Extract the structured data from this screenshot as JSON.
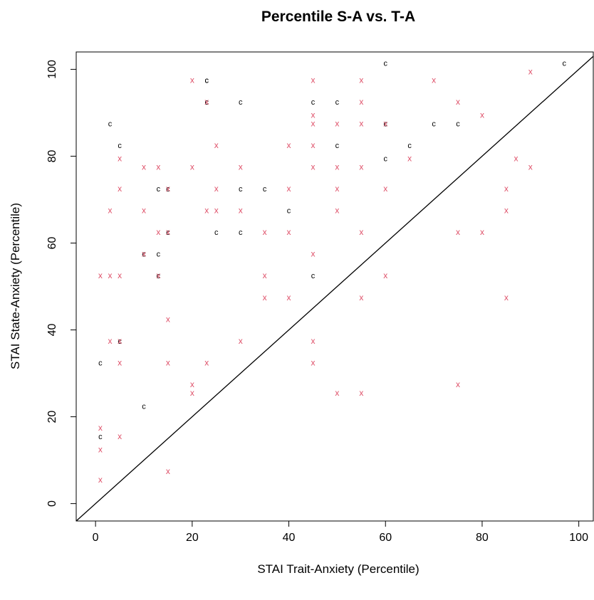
{
  "colors": {
    "c_series": "#000000",
    "x_series": "#DF536B",
    "line": "#000000"
  },
  "chart_data": {
    "type": "scatter",
    "title": "Percentile S-A vs. T-A",
    "xlabel": "STAI Trait-Anxiety (Percentile)",
    "ylabel": "STAI State-Anxiety (Percentile)",
    "xlim": [
      -4,
      103
    ],
    "ylim": [
      -4,
      104
    ],
    "xticks": [
      "0",
      "20",
      "40",
      "60",
      "80",
      "100"
    ],
    "yticks": [
      "0",
      "20",
      "40",
      "60",
      "80",
      "100"
    ],
    "grid": false,
    "reference_line": {
      "slope": 1,
      "intercept": 0
    },
    "series": [
      {
        "marker": "c",
        "points": [
          [
            1,
            15.5
          ],
          [
            1,
            32.5
          ],
          [
            3,
            87.5
          ],
          [
            5,
            82.5
          ],
          [
            5,
            37.5
          ],
          [
            10,
            22.5
          ],
          [
            10,
            57.5
          ],
          [
            13,
            57.5
          ],
          [
            13,
            52.5
          ],
          [
            13,
            72.5
          ],
          [
            15,
            72.5
          ],
          [
            15,
            62.5
          ],
          [
            23,
            97.5
          ],
          [
            23,
            97.5
          ],
          [
            23,
            92.5
          ],
          [
            25,
            62.5
          ],
          [
            30,
            92.5
          ],
          [
            30,
            72.5
          ],
          [
            30,
            62.5
          ],
          [
            35,
            72.5
          ],
          [
            40,
            67.5
          ],
          [
            45,
            92.5
          ],
          [
            45,
            52.5
          ],
          [
            50,
            92.5
          ],
          [
            50,
            82.5
          ],
          [
            60,
            101.5
          ],
          [
            60,
            87.5
          ],
          [
            60,
            79.5
          ],
          [
            65,
            82.5
          ],
          [
            70,
            87.5
          ],
          [
            75,
            87.5
          ],
          [
            97,
            101.5
          ]
        ]
      },
      {
        "marker": "x",
        "points": [
          [
            1,
            52.5
          ],
          [
            1,
            17.5
          ],
          [
            1,
            12.5
          ],
          [
            1,
            5.5
          ],
          [
            3,
            67.5
          ],
          [
            3,
            52.5
          ],
          [
            3,
            37.5
          ],
          [
            5,
            79.5
          ],
          [
            5,
            72.5
          ],
          [
            5,
            52.5
          ],
          [
            5,
            37.5
          ],
          [
            5,
            32.5
          ],
          [
            5,
            15.5
          ],
          [
            10,
            77.5
          ],
          [
            10,
            67.5
          ],
          [
            10,
            57.5
          ],
          [
            13,
            77.5
          ],
          [
            13,
            62.5
          ],
          [
            13,
            52.5
          ],
          [
            15,
            72.5
          ],
          [
            15,
            62.5
          ],
          [
            15,
            42.5
          ],
          [
            15,
            32.5
          ],
          [
            15,
            7.5
          ],
          [
            20,
            97.5
          ],
          [
            20,
            77.5
          ],
          [
            20,
            27.5
          ],
          [
            20,
            25.5
          ],
          [
            23,
            92.5
          ],
          [
            23,
            67.5
          ],
          [
            23,
            32.5
          ],
          [
            25,
            82.5
          ],
          [
            25,
            72.5
          ],
          [
            25,
            67.5
          ],
          [
            30,
            77.5
          ],
          [
            30,
            67.5
          ],
          [
            30,
            37.5
          ],
          [
            35,
            62.5
          ],
          [
            35,
            52.5
          ],
          [
            35,
            47.5
          ],
          [
            40,
            82.5
          ],
          [
            40,
            72.5
          ],
          [
            40,
            62.5
          ],
          [
            40,
            47.5
          ],
          [
            45,
            97.5
          ],
          [
            45,
            89.5
          ],
          [
            45,
            87.5
          ],
          [
            45,
            82.5
          ],
          [
            45,
            77.5
          ],
          [
            45,
            57.5
          ],
          [
            45,
            37.5
          ],
          [
            45,
            32.5
          ],
          [
            50,
            87.5
          ],
          [
            50,
            77.5
          ],
          [
            50,
            72.5
          ],
          [
            50,
            67.5
          ],
          [
            50,
            25.5
          ],
          [
            55,
            97.5
          ],
          [
            55,
            92.5
          ],
          [
            55,
            87.5
          ],
          [
            55,
            77.5
          ],
          [
            55,
            62.5
          ],
          [
            55,
            47.5
          ],
          [
            55,
            25.5
          ],
          [
            60,
            87.5
          ],
          [
            60,
            72.5
          ],
          [
            60,
            52.5
          ],
          [
            65,
            79.5
          ],
          [
            70,
            97.5
          ],
          [
            75,
            92.5
          ],
          [
            75,
            62.5
          ],
          [
            75,
            27.5
          ],
          [
            80,
            89.5
          ],
          [
            80,
            62.5
          ],
          [
            85,
            72.5
          ],
          [
            85,
            67.5
          ],
          [
            85,
            47.5
          ],
          [
            87,
            79.5
          ],
          [
            90,
            99.5
          ],
          [
            90,
            77.5
          ]
        ]
      }
    ]
  }
}
